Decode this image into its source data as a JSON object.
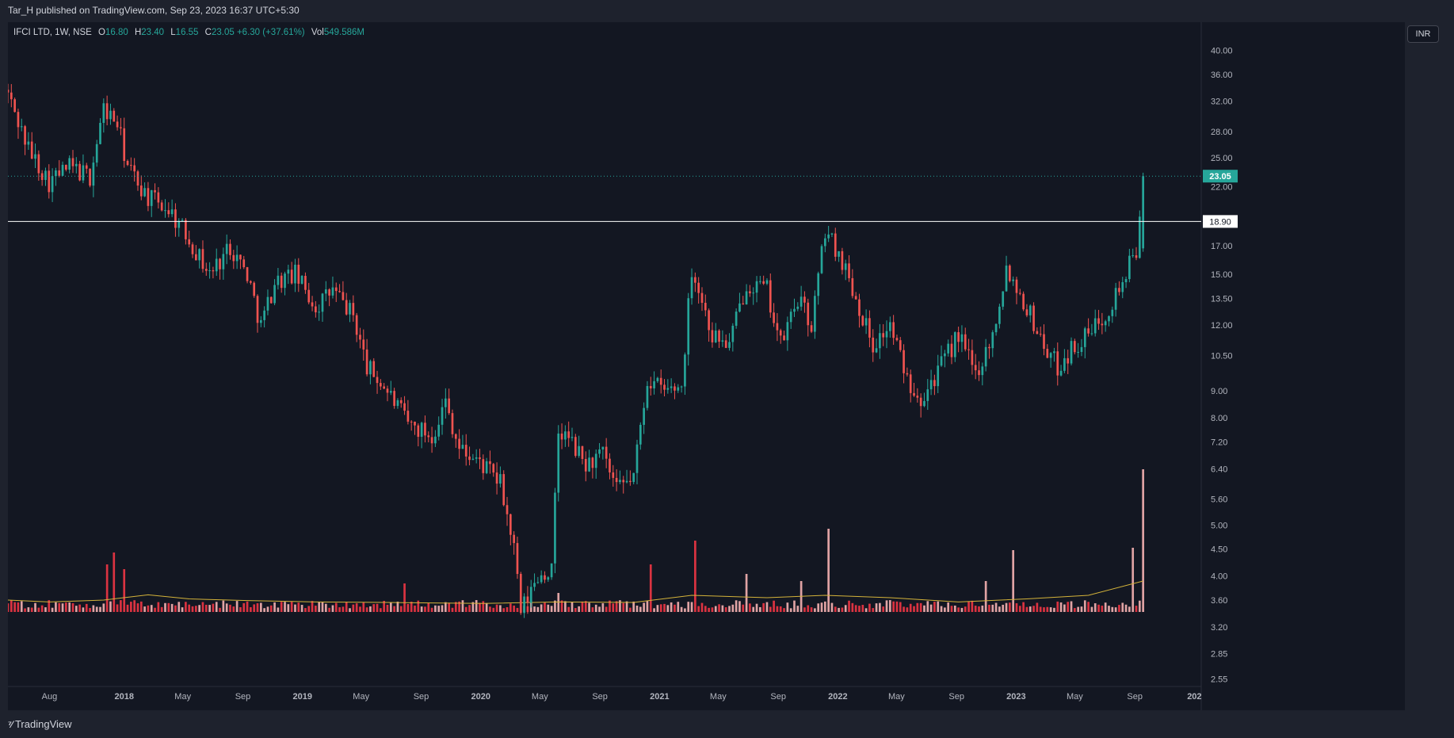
{
  "header": {
    "publisher_text": "Tar_H published on TradingView.com, Sep 23, 2023 16:37 UTC+5:30"
  },
  "legend": {
    "symbol": "IFCI LTD, 1W, NSE",
    "open_label": "O",
    "open_value": "16.80",
    "high_label": "H",
    "high_value": "23.40",
    "low_label": "L",
    "low_value": "16.55",
    "close_label": "C",
    "close_value": "23.05",
    "change": "+6.30 (+37.61%)",
    "volume_label": "Vol",
    "volume_value": "549.586M"
  },
  "currency_badge": "INR",
  "footer": {
    "brand": "TradingView",
    "logo_icon": "tradingview-logo-icon"
  },
  "colors": {
    "up": "#26a69a",
    "down": "#ef5350",
    "vol_up": "#f7b3b3",
    "vol_down": "#f23645",
    "ma_line": "#d4b33a",
    "horizontal_line": "#ffffff",
    "background": "#131722"
  },
  "chart_data": {
    "type": "candlestick",
    "symbol": "IFCI LTD",
    "interval": "1W",
    "exchange": "NSE",
    "y_scale": "log",
    "y_ticks": [
      "40.00",
      "36.00",
      "32.00",
      "28.00",
      "25.00",
      "22.00",
      "17.00",
      "15.00",
      "13.50",
      "12.00",
      "10.50",
      "9.00",
      "8.00",
      "7.20",
      "6.40",
      "5.60",
      "5.00",
      "4.50",
      "4.00",
      "3.60",
      "3.20",
      "2.85",
      "2.55"
    ],
    "x_ticks": [
      {
        "label": "Aug",
        "date": "2017-08-01"
      },
      {
        "label": "2018",
        "date": "2018-01-01"
      },
      {
        "label": "May",
        "date": "2018-05-01"
      },
      {
        "label": "Sep",
        "date": "2018-09-01"
      },
      {
        "label": "2019",
        "date": "2019-01-01"
      },
      {
        "label": "May",
        "date": "2019-05-01"
      },
      {
        "label": "Sep",
        "date": "2019-09-01"
      },
      {
        "label": "2020",
        "date": "2020-01-01"
      },
      {
        "label": "May",
        "date": "2020-05-01"
      },
      {
        "label": "Sep",
        "date": "2020-09-01"
      },
      {
        "label": "2021",
        "date": "2021-01-01"
      },
      {
        "label": "May",
        "date": "2021-05-01"
      },
      {
        "label": "Sep",
        "date": "2021-09-01"
      },
      {
        "label": "2022",
        "date": "2022-01-01"
      },
      {
        "label": "May",
        "date": "2022-05-01"
      },
      {
        "label": "Sep",
        "date": "2022-09-01"
      },
      {
        "label": "2023",
        "date": "2023-01-01"
      },
      {
        "label": "May",
        "date": "2023-05-01"
      },
      {
        "label": "Sep",
        "date": "2023-09-01"
      },
      {
        "label": "202",
        "date": "2024-01-01"
      }
    ],
    "x_range": [
      "2017-05-08",
      "2024-01-15"
    ],
    "y_range": [
      2.5,
      44
    ],
    "horizontal_line": {
      "value": 18.9,
      "label": "18.90"
    },
    "last_price": {
      "value": 23.05,
      "label": "23.05"
    },
    "price_path": [
      [
        "2017-05-08",
        33
      ],
      [
        "2017-06-19",
        26
      ],
      [
        "2017-07-31",
        22.5
      ],
      [
        "2017-09-11",
        24
      ],
      [
        "2017-10-23",
        23
      ],
      [
        "2017-11-20",
        31
      ],
      [
        "2017-12-18",
        29
      ],
      [
        "2018-01-08",
        24
      ],
      [
        "2018-02-19",
        21
      ],
      [
        "2018-04-02",
        20
      ],
      [
        "2018-05-14",
        17.5
      ],
      [
        "2018-06-25",
        15
      ],
      [
        "2018-08-06",
        17
      ],
      [
        "2018-09-10",
        15
      ],
      [
        "2018-10-08",
        12
      ],
      [
        "2018-11-05",
        14.5
      ],
      [
        "2018-12-17",
        15
      ],
      [
        "2019-01-28",
        13
      ],
      [
        "2019-03-04",
        14
      ],
      [
        "2019-04-15",
        12.5
      ],
      [
        "2019-05-13",
        10
      ],
      [
        "2019-06-24",
        9
      ],
      [
        "2019-08-05",
        7.8
      ],
      [
        "2019-09-23",
        7.4
      ],
      [
        "2019-10-21",
        8.6
      ],
      [
        "2019-11-18",
        7
      ],
      [
        "2020-01-06",
        6.5
      ],
      [
        "2020-02-10",
        6
      ],
      [
        "2020-03-09",
        4.5
      ],
      [
        "2020-03-23",
        3.4
      ],
      [
        "2020-04-27",
        4
      ],
      [
        "2020-05-25",
        4.1
      ],
      [
        "2020-06-08",
        7.5
      ],
      [
        "2020-06-29",
        7.3
      ],
      [
        "2020-08-03",
        6.5
      ],
      [
        "2020-09-07",
        6.8
      ],
      [
        "2020-10-05",
        5.8
      ],
      [
        "2020-11-09",
        6.2
      ],
      [
        "2020-12-07",
        9.5
      ],
      [
        "2021-01-11",
        9
      ],
      [
        "2021-02-15",
        9.2
      ],
      [
        "2021-03-08",
        15.5
      ],
      [
        "2021-04-19",
        11.5
      ],
      [
        "2021-05-24",
        11
      ],
      [
        "2021-06-28",
        14.5
      ],
      [
        "2021-08-09",
        14
      ],
      [
        "2021-09-06",
        11
      ],
      [
        "2021-10-11",
        13.5
      ],
      [
        "2021-11-08",
        12
      ],
      [
        "2021-12-06",
        18.2
      ],
      [
        "2022-01-10",
        16
      ],
      [
        "2022-02-14",
        13
      ],
      [
        "2022-03-14",
        11
      ],
      [
        "2022-04-18",
        12
      ],
      [
        "2022-05-23",
        9.5
      ],
      [
        "2022-06-20",
        8.8
      ],
      [
        "2022-07-25",
        9.8
      ],
      [
        "2022-09-05",
        11.5
      ],
      [
        "2022-10-10",
        9.7
      ],
      [
        "2022-11-14",
        11.5
      ],
      [
        "2022-12-12",
        15.5
      ],
      [
        "2023-01-23",
        13
      ],
      [
        "2023-02-27",
        11
      ],
      [
        "2023-03-27",
        10
      ],
      [
        "2023-04-24",
        10.8
      ],
      [
        "2023-05-29",
        11.5
      ],
      [
        "2023-07-10",
        13
      ],
      [
        "2023-08-14",
        15
      ],
      [
        "2023-09-04",
        16.8
      ],
      [
        "2023-09-18",
        23.05
      ]
    ],
    "volume": {
      "ma_path": [
        [
          "2017-05-08",
          0.3
        ],
        [
          "2017-08-01",
          0.22
        ],
        [
          "2017-11-20",
          0.3
        ],
        [
          "2018-02-19",
          0.52
        ],
        [
          "2018-05-14",
          0.35
        ],
        [
          "2018-09-10",
          0.28
        ],
        [
          "2019-01-28",
          0.22
        ],
        [
          "2019-06-24",
          0.2
        ],
        [
          "2020-01-06",
          0.16
        ],
        [
          "2020-06-08",
          0.22
        ],
        [
          "2020-11-09",
          0.2
        ],
        [
          "2021-03-08",
          0.5
        ],
        [
          "2021-08-09",
          0.4
        ],
        [
          "2021-12-06",
          0.5
        ],
        [
          "2022-04-18",
          0.4
        ],
        [
          "2022-09-05",
          0.22
        ],
        [
          "2023-01-23",
          0.35
        ],
        [
          "2023-05-29",
          0.5
        ],
        [
          "2023-09-18",
          1.1
        ]
      ],
      "spikes": [
        [
          "2017-11-27",
          2.0
        ],
        [
          "2017-12-11",
          2.5
        ],
        [
          "2018-01-01",
          1.8
        ],
        [
          "2019-07-29",
          1.2
        ],
        [
          "2020-06-08",
          0.8
        ],
        [
          "2020-12-14",
          2.0
        ],
        [
          "2021-03-15",
          3.0
        ],
        [
          "2021-06-28",
          1.6
        ],
        [
          "2021-10-18",
          1.3
        ],
        [
          "2021-12-13",
          3.5
        ],
        [
          "2022-10-31",
          1.3
        ],
        [
          "2022-12-26",
          2.6
        ],
        [
          "2023-08-28",
          2.7
        ],
        [
          "2023-09-18",
          6.0
        ]
      ]
    }
  }
}
